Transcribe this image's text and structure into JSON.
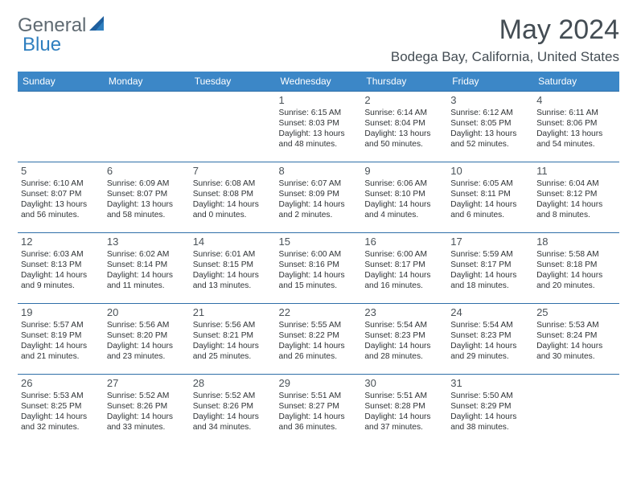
{
  "brand": {
    "part1": "General",
    "part2": "Blue"
  },
  "title": "May 2024",
  "location": "Bodega Bay, California, United States",
  "colors": {
    "header_bg": "#3c87c7",
    "header_text": "#ffffff",
    "row_border": "#2f6fa8",
    "title_color": "#444d54",
    "body_text": "#2f3336",
    "brand_grey": "#5f6a72",
    "brand_blue": "#2f7fbf",
    "page_bg": "#ffffff"
  },
  "weekdays": [
    "Sunday",
    "Monday",
    "Tuesday",
    "Wednesday",
    "Thursday",
    "Friday",
    "Saturday"
  ],
  "weeks": [
    [
      null,
      null,
      null,
      {
        "d": "1",
        "sr": "6:15 AM",
        "ss": "8:03 PM",
        "dl": "13 hours and 48 minutes."
      },
      {
        "d": "2",
        "sr": "6:14 AM",
        "ss": "8:04 PM",
        "dl": "13 hours and 50 minutes."
      },
      {
        "d": "3",
        "sr": "6:12 AM",
        "ss": "8:05 PM",
        "dl": "13 hours and 52 minutes."
      },
      {
        "d": "4",
        "sr": "6:11 AM",
        "ss": "8:06 PM",
        "dl": "13 hours and 54 minutes."
      }
    ],
    [
      {
        "d": "5",
        "sr": "6:10 AM",
        "ss": "8:07 PM",
        "dl": "13 hours and 56 minutes."
      },
      {
        "d": "6",
        "sr": "6:09 AM",
        "ss": "8:07 PM",
        "dl": "13 hours and 58 minutes."
      },
      {
        "d": "7",
        "sr": "6:08 AM",
        "ss": "8:08 PM",
        "dl": "14 hours and 0 minutes."
      },
      {
        "d": "8",
        "sr": "6:07 AM",
        "ss": "8:09 PM",
        "dl": "14 hours and 2 minutes."
      },
      {
        "d": "9",
        "sr": "6:06 AM",
        "ss": "8:10 PM",
        "dl": "14 hours and 4 minutes."
      },
      {
        "d": "10",
        "sr": "6:05 AM",
        "ss": "8:11 PM",
        "dl": "14 hours and 6 minutes."
      },
      {
        "d": "11",
        "sr": "6:04 AM",
        "ss": "8:12 PM",
        "dl": "14 hours and 8 minutes."
      }
    ],
    [
      {
        "d": "12",
        "sr": "6:03 AM",
        "ss": "8:13 PM",
        "dl": "14 hours and 9 minutes."
      },
      {
        "d": "13",
        "sr": "6:02 AM",
        "ss": "8:14 PM",
        "dl": "14 hours and 11 minutes."
      },
      {
        "d": "14",
        "sr": "6:01 AM",
        "ss": "8:15 PM",
        "dl": "14 hours and 13 minutes."
      },
      {
        "d": "15",
        "sr": "6:00 AM",
        "ss": "8:16 PM",
        "dl": "14 hours and 15 minutes."
      },
      {
        "d": "16",
        "sr": "6:00 AM",
        "ss": "8:17 PM",
        "dl": "14 hours and 16 minutes."
      },
      {
        "d": "17",
        "sr": "5:59 AM",
        "ss": "8:17 PM",
        "dl": "14 hours and 18 minutes."
      },
      {
        "d": "18",
        "sr": "5:58 AM",
        "ss": "8:18 PM",
        "dl": "14 hours and 20 minutes."
      }
    ],
    [
      {
        "d": "19",
        "sr": "5:57 AM",
        "ss": "8:19 PM",
        "dl": "14 hours and 21 minutes."
      },
      {
        "d": "20",
        "sr": "5:56 AM",
        "ss": "8:20 PM",
        "dl": "14 hours and 23 minutes."
      },
      {
        "d": "21",
        "sr": "5:56 AM",
        "ss": "8:21 PM",
        "dl": "14 hours and 25 minutes."
      },
      {
        "d": "22",
        "sr": "5:55 AM",
        "ss": "8:22 PM",
        "dl": "14 hours and 26 minutes."
      },
      {
        "d": "23",
        "sr": "5:54 AM",
        "ss": "8:23 PM",
        "dl": "14 hours and 28 minutes."
      },
      {
        "d": "24",
        "sr": "5:54 AM",
        "ss": "8:23 PM",
        "dl": "14 hours and 29 minutes."
      },
      {
        "d": "25",
        "sr": "5:53 AM",
        "ss": "8:24 PM",
        "dl": "14 hours and 30 minutes."
      }
    ],
    [
      {
        "d": "26",
        "sr": "5:53 AM",
        "ss": "8:25 PM",
        "dl": "14 hours and 32 minutes."
      },
      {
        "d": "27",
        "sr": "5:52 AM",
        "ss": "8:26 PM",
        "dl": "14 hours and 33 minutes."
      },
      {
        "d": "28",
        "sr": "5:52 AM",
        "ss": "8:26 PM",
        "dl": "14 hours and 34 minutes."
      },
      {
        "d": "29",
        "sr": "5:51 AM",
        "ss": "8:27 PM",
        "dl": "14 hours and 36 minutes."
      },
      {
        "d": "30",
        "sr": "5:51 AM",
        "ss": "8:28 PM",
        "dl": "14 hours and 37 minutes."
      },
      {
        "d": "31",
        "sr": "5:50 AM",
        "ss": "8:29 PM",
        "dl": "14 hours and 38 minutes."
      },
      null
    ]
  ],
  "labels": {
    "sunrise": "Sunrise:",
    "sunset": "Sunset:",
    "daylight": "Daylight:"
  }
}
